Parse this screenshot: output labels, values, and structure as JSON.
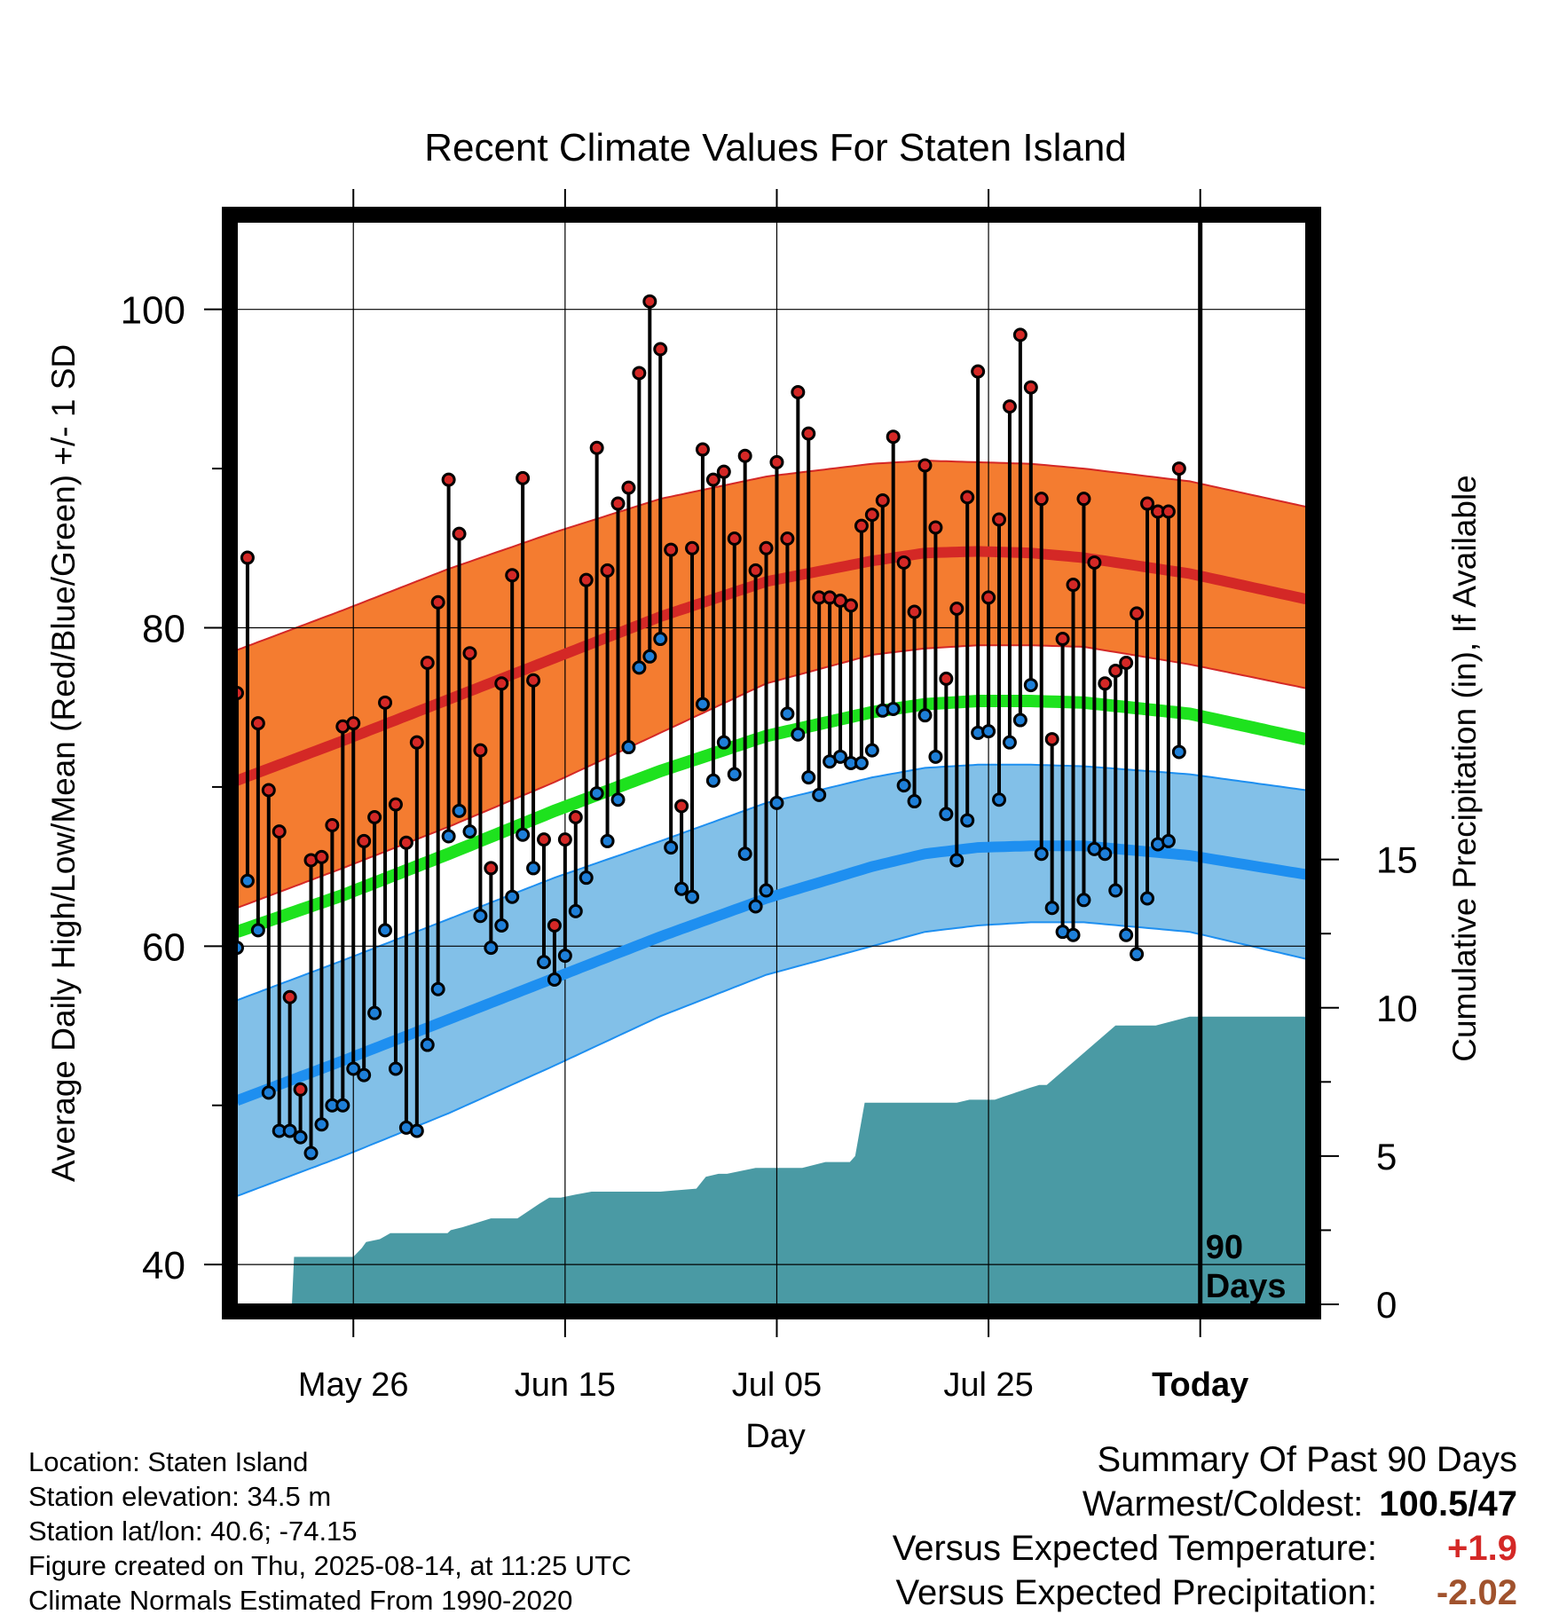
{
  "chart_data": {
    "type": "line",
    "title": "Recent Climate Values For Staten Island",
    "xlabel": "Day",
    "ylabel": "Average Daily High/Low/Mean (Red/Blue/Green) +/- 1 SD",
    "ylabel_right": "Cumulative Precipitation (in), If Available",
    "ylim": [
      37.5,
      105.5
    ],
    "yticks": [
      40,
      60,
      80,
      100
    ],
    "y2lim": [
      0,
      36.5
    ],
    "y2ticks": [
      0,
      5,
      10,
      15
    ],
    "xlim": [
      0,
      101
    ],
    "xticks": [
      {
        "x": 11,
        "label": "May 26"
      },
      {
        "x": 31,
        "label": "Jun 15"
      },
      {
        "x": 51,
        "label": "Jul 05"
      },
      {
        "x": 71,
        "label": "Jul 25"
      },
      {
        "x": 91,
        "label": "Today"
      }
    ],
    "today_marker": {
      "x": 91,
      "label": "90 Days"
    },
    "grid": true,
    "normals_days": [
      0,
      10,
      20,
      30,
      40,
      50,
      60,
      65,
      70,
      75,
      80,
      90,
      101
    ],
    "normal_high": [
      70.4,
      72.9,
      75.5,
      78.1,
      80.7,
      82.9,
      84.2,
      84.7,
      84.8,
      84.7,
      84.4,
      83.4,
      81.8
    ],
    "normal_high_upper": [
      78.6,
      81.1,
      83.7,
      86.0,
      88.1,
      89.5,
      90.3,
      90.5,
      90.4,
      90.3,
      90.0,
      89.2,
      87.6
    ],
    "normal_high_lower": [
      62.4,
      64.9,
      67.5,
      70.3,
      73.4,
      76.5,
      78.3,
      78.7,
      78.9,
      78.9,
      78.8,
      77.7,
      76.2
    ],
    "normal_mean": [
      60.9,
      63.2,
      65.8,
      68.5,
      71.0,
      73.2,
      74.7,
      75.2,
      75.4,
      75.4,
      75.3,
      74.6,
      73.0
    ],
    "normal_low": [
      50.3,
      52.8,
      55.4,
      58.0,
      60.6,
      63.0,
      65.0,
      65.8,
      66.2,
      66.3,
      66.3,
      65.7,
      64.5
    ],
    "normal_low_upper": [
      56.6,
      59.1,
      61.7,
      64.3,
      66.6,
      69.0,
      70.6,
      71.2,
      71.4,
      71.4,
      71.3,
      70.8,
      69.8
    ],
    "normal_low_lower": [
      44.3,
      46.8,
      49.5,
      52.5,
      55.6,
      58.2,
      60.0,
      60.9,
      61.3,
      61.5,
      61.5,
      60.9,
      59.2
    ],
    "series": [
      {
        "name": "High",
        "days": [
          0,
          1,
          2,
          3,
          4,
          5,
          6,
          7,
          8,
          9,
          10,
          11,
          12,
          13,
          14,
          15,
          16,
          17,
          18,
          19,
          20,
          21,
          22,
          23,
          24,
          25,
          26,
          27,
          28,
          29,
          30,
          31,
          32,
          33,
          34,
          35,
          36,
          37,
          38,
          39,
          40,
          41,
          42,
          43,
          44,
          45,
          46,
          47,
          48,
          49,
          50,
          51,
          52,
          53,
          54,
          55,
          56,
          57,
          58,
          59,
          60,
          61,
          62,
          63,
          64,
          65,
          66,
          67,
          68,
          69,
          70,
          71,
          72,
          73,
          74,
          75,
          76,
          77,
          78,
          79,
          80,
          81,
          82,
          83,
          84,
          85,
          86,
          87,
          88,
          89
        ],
        "values": [
          75.9,
          84.4,
          74.0,
          69.8,
          67.2,
          56.8,
          51.0,
          65.4,
          65.6,
          67.6,
          73.8,
          74.0,
          66.6,
          68.1,
          75.3,
          68.9,
          66.5,
          72.8,
          77.8,
          81.6,
          89.3,
          85.9,
          78.4,
          72.3,
          64.9,
          76.5,
          83.3,
          89.4,
          76.7,
          66.7,
          61.3,
          66.7,
          68.1,
          83.0,
          91.3,
          83.6,
          87.8,
          88.8,
          96.0,
          100.5,
          97.5,
          84.9,
          68.8,
          85.0,
          91.2,
          89.3,
          89.8,
          85.6,
          90.8,
          83.6,
          85.0,
          90.4,
          85.6,
          94.8,
          92.2,
          81.9,
          81.9,
          81.7,
          81.4,
          86.4,
          87.1,
          88.0,
          92.0,
          84.1,
          81.0,
          90.2,
          86.3,
          76.8,
          81.2,
          88.2,
          96.1,
          81.9,
          86.8,
          93.9,
          98.4,
          95.1,
          88.1,
          73.0,
          79.3,
          82.7,
          88.1,
          84.1,
          76.5,
          77.3,
          77.8,
          80.9,
          87.8,
          87.3,
          87.3,
          90.0
        ]
      },
      {
        "name": "Low",
        "days": [
          0,
          1,
          2,
          3,
          4,
          5,
          6,
          7,
          8,
          9,
          10,
          11,
          12,
          13,
          14,
          15,
          16,
          17,
          18,
          19,
          20,
          21,
          22,
          23,
          24,
          25,
          26,
          27,
          28,
          29,
          30,
          31,
          32,
          33,
          34,
          35,
          36,
          37,
          38,
          39,
          40,
          41,
          42,
          43,
          44,
          45,
          46,
          47,
          48,
          49,
          50,
          51,
          52,
          53,
          54,
          55,
          56,
          57,
          58,
          59,
          60,
          61,
          62,
          63,
          64,
          65,
          66,
          67,
          68,
          69,
          70,
          71,
          72,
          73,
          74,
          75,
          76,
          77,
          78,
          79,
          80,
          81,
          82,
          83,
          84,
          85,
          86,
          87,
          88,
          89
        ],
        "values": [
          59.9,
          64.1,
          61.0,
          50.8,
          48.4,
          48.4,
          48.0,
          47.0,
          48.8,
          50.0,
          50.0,
          52.3,
          51.9,
          55.8,
          61.0,
          52.3,
          48.6,
          48.4,
          53.8,
          57.3,
          66.9,
          68.5,
          67.2,
          61.9,
          59.9,
          61.3,
          63.1,
          67.0,
          64.9,
          59.0,
          57.9,
          59.4,
          62.2,
          64.3,
          69.6,
          66.6,
          69.2,
          72.5,
          77.5,
          78.2,
          79.3,
          66.2,
          63.6,
          63.1,
          75.2,
          70.4,
          72.8,
          70.8,
          65.8,
          62.5,
          63.5,
          69.0,
          74.6,
          73.3,
          70.6,
          69.5,
          71.6,
          71.9,
          71.5,
          71.5,
          72.3,
          74.8,
          74.9,
          70.1,
          69.1,
          74.5,
          71.9,
          68.3,
          65.4,
          67.9,
          73.4,
          73.5,
          69.2,
          72.8,
          74.2,
          76.4,
          65.8,
          62.4,
          60.9,
          60.7,
          62.9,
          66.1,
          65.8,
          63.5,
          60.7,
          59.5,
          63.0,
          66.4,
          66.6,
          72.2
        ]
      }
    ],
    "precip_cumulative": {
      "days": [
        0,
        5.2,
        5.4,
        10.0,
        11.0,
        11.8,
        12.2,
        13.5,
        14.5,
        15.0,
        19.9,
        20.2,
        21.3,
        24.0,
        24.3,
        26.5,
        28.6,
        29.5,
        30.6,
        32.0,
        33.5,
        34.3,
        35.6,
        40.0,
        43.4,
        44.3,
        45.5,
        46.3,
        49.0,
        53.4,
        55.6,
        56.3,
        57.9,
        58.4,
        59.3,
        68.0,
        69.2,
        71.6,
        72.4,
        74.9,
        75.8,
        76.5,
        83.0,
        85.8,
        86.8,
        90.0,
        101.0
      ],
      "values": [
        0.0,
        0.0,
        1.6,
        1.6,
        1.6,
        1.9,
        2.1,
        2.2,
        2.4,
        2.4,
        2.4,
        2.5,
        2.6,
        2.9,
        2.9,
        2.9,
        3.4,
        3.6,
        3.6,
        3.7,
        3.8,
        3.8,
        3.8,
        3.8,
        3.9,
        4.3,
        4.4,
        4.4,
        4.6,
        4.6,
        4.8,
        4.8,
        4.8,
        5.0,
        6.8,
        6.8,
        6.9,
        6.9,
        7.0,
        7.3,
        7.4,
        7.4,
        9.4,
        9.4,
        9.4,
        9.7,
        9.7
      ]
    },
    "colors": {
      "high_band": "#f47c30",
      "high_line": "#d42826",
      "mean_line": "#1ee21e",
      "low_band": "#82c0e8",
      "low_line": "#1e8ff0",
      "precip": "#4a9aa4",
      "high_marker": "#d42826",
      "low_marker": "#1e7fd8"
    }
  },
  "footer": {
    "location": "Location: Staten Island",
    "elevation": "Station elevation: 34.5 m",
    "latlon": "Station lat/lon: 40.6; -74.15",
    "created": "Figure created on Thu, 2025-08-14, at 11:25 UTC",
    "normals": "Climate Normals Estimated From 1990-2020"
  },
  "summary": {
    "title": "Summary Of Past 90 Days",
    "warmest_label": "Warmest/Coldest:",
    "warmest_value": "100.5/47",
    "temp_label": "Versus Expected Temperature:",
    "temp_value": "+1.9",
    "temp_color": "#d42826",
    "precip_label": "Versus Expected Precipitation:",
    "precip_value": "-2.02",
    "precip_color": "#a0522d"
  }
}
